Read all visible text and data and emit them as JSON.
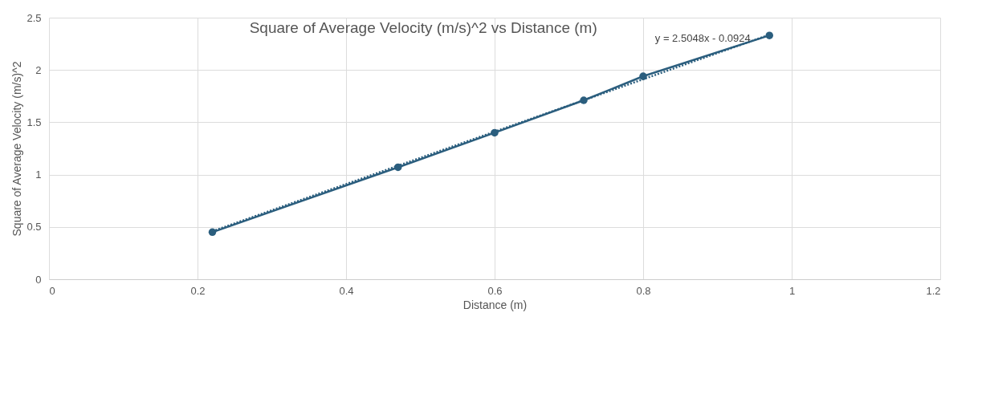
{
  "chart_data": {
    "type": "line",
    "title": "Square of Average Velocity (m/s)^2 vs Distance (m)",
    "xlabel": "Distance (m)",
    "ylabel": "Square of Average Velocity (m/s)^2",
    "x": [
      0.22,
      0.47,
      0.6,
      0.72,
      0.8,
      0.97
    ],
    "series": [
      {
        "color": "#2b5e7e",
        "values": [
          0.45,
          1.07,
          1.4,
          1.71,
          1.94,
          2.33
        ],
        "marker": "circle",
        "line_style": "solid"
      },
      {
        "type": "line",
        "color": "#2b5e7e",
        "x": [
          0.22,
          0.97
        ],
        "values": [
          0.459,
          2.337
        ],
        "line_style": "dotted"
      }
    ],
    "annotations": [
      "y = 2.5048x - 0.0924"
    ],
    "xlim": [
      0,
      1.2
    ],
    "xticks": [
      0,
      0.2,
      0.4,
      0.6,
      0.8,
      1,
      1.2
    ],
    "ylim": [
      0,
      2.5
    ],
    "yticks": [
      0,
      0.5,
      1,
      1.5,
      2,
      2.5
    ],
    "grid": true
  }
}
